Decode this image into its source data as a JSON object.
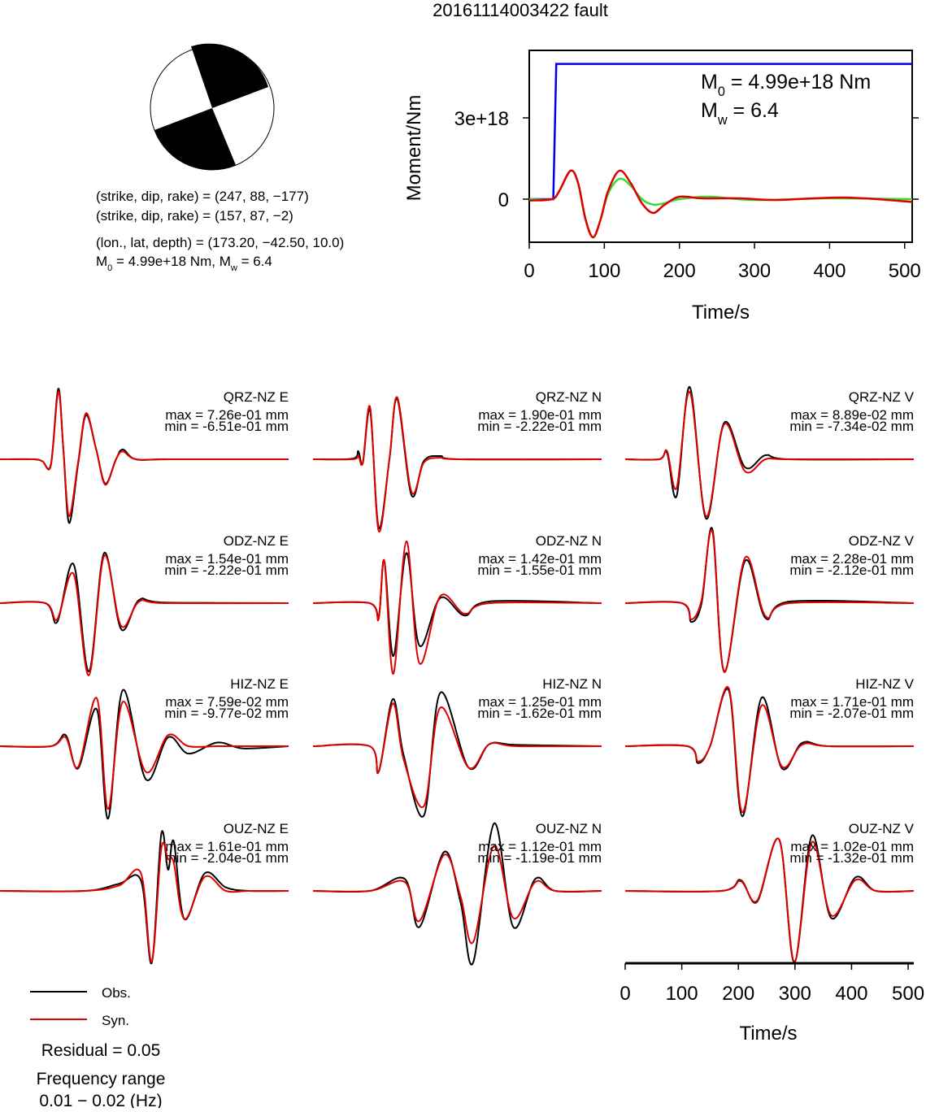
{
  "title": "20161114003422 fault",
  "mechanism": {
    "lines": [
      "(strike, dip, rake) = (247, 88, −177)",
      "(strike, dip, rake) = (157, 87, −2)",
      "(lon., lat, depth) = (173.20, −42.50, 10.0)"
    ],
    "moment_line": [
      "M",
      "0",
      " = 4.99e+18 Nm, M",
      "w",
      " = 6.4"
    ]
  },
  "chart_data": [
    {
      "type": "line",
      "ylabel": "Moment/Nm",
      "xlabel": "Time/s",
      "xlim": [
        0,
        510
      ],
      "xticks": [
        0,
        100,
        200,
        300,
        400,
        500
      ],
      "ylim": [
        -1.59e+18,
        5.49e+18
      ],
      "yticks": [
        0,
        {
          "value": 3e+18,
          "label": "3e+18"
        }
      ],
      "annotations": [
        [
          "M",
          "0",
          " = 4.99e+18 Nm"
        ],
        [
          "M",
          "w",
          " = 6.4"
        ]
      ],
      "series": [
        {
          "color": "#0000e0",
          "smooth": false,
          "x": [
            0,
            32,
            36,
            510
          ],
          "values": [
            0,
            0,
            4.99e+18,
            4.99e+18
          ]
        },
        {
          "color": "#33dd33",
          "smooth": true,
          "x": [
            0,
            30,
            40,
            55,
            65,
            75,
            85,
            95,
            105,
            120,
            135,
            150,
            165,
            180,
            200,
            240,
            300,
            400,
            510
          ],
          "values": [
            0,
            0,
            3e+17,
            1.05e+18,
            6e+17,
            -7.5e+17,
            -1.41e+18,
            -7.5e+17,
            2e+17,
            7.5e+17,
            5e+17,
            0,
            -2e+17,
            -1.5e+17,
            0,
            9e+16,
            -3e+16,
            3e+16,
            0
          ]
        },
        {
          "color": "#e00000",
          "smooth": true,
          "x": [
            0,
            30,
            40,
            55,
            65,
            75,
            85,
            95,
            105,
            120,
            135,
            150,
            165,
            180,
            200,
            230,
            280,
            330,
            420,
            510
          ],
          "values": [
            -5e+16,
            0,
            3e+17,
            1.05e+18,
            6e+17,
            -7.5e+17,
            -1.41e+18,
            -7.5e+17,
            3e+17,
            1.05e+18,
            6e+17,
            -1.5e+17,
            -5.1e+17,
            -2.1e+17,
            9e+16,
            3e+16,
            3e+16,
            -3e+16,
            6e+16,
            -1e+17
          ]
        }
      ]
    },
    {
      "type": "waveform",
      "xlabel": "Time/s",
      "xlim": [
        0,
        510
      ],
      "xticks": [
        0,
        100,
        200,
        300,
        400,
        500
      ],
      "legend": [
        {
          "name": "Obs.",
          "color": "#000000"
        },
        {
          "name": "Syn.",
          "color": "#e00000"
        }
      ],
      "notes": [
        "Residual = 0.05",
        "Frequency range",
        "0.01 − 0.02 (Hz)"
      ],
      "panels": [
        {
          "title": "QRZ-NZ E",
          "max": "max = 7.26e-01 mm",
          "min": "min = -6.51e-01 mm",
          "ylim": [
            -0.83,
            0.83
          ],
          "x": [
            0,
            60,
            75,
            90,
            103,
            112,
            122,
            138,
            152,
            170,
            186,
            205,
            217,
            240,
            300,
            510
          ],
          "obs": [
            0,
            0,
            -0.02,
            -0.05,
            0.72,
            0.1,
            -0.65,
            -0.05,
            0.45,
            0.1,
            -0.25,
            0,
            0.1,
            0,
            0,
            0
          ],
          "syn": [
            0,
            0,
            -0.02,
            -0.06,
            0.69,
            0.1,
            -0.58,
            -0.03,
            0.47,
            0.1,
            -0.26,
            0,
            0.08,
            0,
            0,
            0
          ]
        },
        {
          "title": "QRZ-NZ N",
          "max": "max = 1.90e-01 mm",
          "min": "min = -2.22e-01 mm",
          "ylim": [
            -0.25,
            0.25
          ],
          "x": [
            0,
            70,
            80,
            88,
            101,
            116,
            135,
            149,
            174,
            196,
            225,
            260,
            510
          ],
          "obs": [
            0,
            0.002,
            0.025,
            -0.012,
            0.15,
            -0.21,
            0,
            0.185,
            -0.11,
            -0.005,
            0.01,
            0,
            0
          ],
          "syn": [
            0,
            0,
            0.01,
            -0.01,
            0.16,
            -0.22,
            0,
            0.19,
            -0.1,
            -0.01,
            0.005,
            0,
            0
          ]
        },
        {
          "title": "QRZ-NZ V",
          "max": "max = 8.89e-02 mm",
          "min": "min = -7.34e-02 mm",
          "ylim": [
            -0.1,
            0.1
          ],
          "x": [
            0,
            60,
            74,
            91,
            114,
            143,
            175,
            212,
            248,
            290,
            510
          ],
          "obs": [
            0,
            0,
            0.008,
            -0.045,
            0.089,
            -0.073,
            0.045,
            -0.01,
            0.005,
            0,
            0
          ],
          "syn": [
            0,
            0,
            0.01,
            -0.035,
            0.083,
            -0.07,
            0.043,
            -0.015,
            0,
            0,
            0
          ]
        },
        {
          "title": "ODZ-NZ E",
          "max": "max = 1.54e-01 mm",
          "min": "min = -2.22e-01 mm",
          "ylim": [
            -0.25,
            0.25
          ],
          "x": [
            0,
            80,
            101,
            130,
            157,
            184,
            214,
            246,
            290,
            510
          ],
          "obs": [
            0,
            0,
            -0.058,
            0.12,
            -0.21,
            0.154,
            -0.08,
            0.01,
            0.002,
            0
          ],
          "syn": [
            0,
            0,
            -0.05,
            0.09,
            -0.222,
            0.145,
            -0.07,
            0.005,
            0,
            0
          ]
        },
        {
          "title": "ODZ-NZ N",
          "max": "max = 1.42e-01 mm",
          "min": "min = -1.55e-01 mm",
          "ylim": [
            -0.23,
            0.23
          ],
          "x": [
            0,
            100,
            116,
            126,
            142,
            165,
            188,
            225,
            268,
            312,
            510
          ],
          "obs": [
            0,
            0,
            -0.04,
            0.12,
            -0.15,
            0.142,
            -0.12,
            0.015,
            -0.035,
            0.005,
            0
          ],
          "syn": [
            0,
            0,
            -0.045,
            0.12,
            -0.2,
            0.175,
            -0.17,
            0.02,
            -0.03,
            0,
            0
          ]
        },
        {
          "title": "ODZ-NZ V",
          "max": "max = 2.28e-01 mm",
          "min": "min = -2.12e-01 mm",
          "ylim": [
            -0.25,
            0.25
          ],
          "x": [
            0,
            100,
            117,
            135,
            154,
            175,
            212,
            248,
            291,
            510
          ],
          "obs": [
            0,
            0,
            -0.058,
            0,
            0.228,
            -0.21,
            0.13,
            -0.046,
            0.005,
            0
          ],
          "syn": [
            0,
            0,
            -0.05,
            0.01,
            0.22,
            -0.212,
            0.14,
            -0.04,
            0,
            0
          ]
        },
        {
          "title": "HIZ-NZ E",
          "max": "max = 7.59e-02 mm",
          "min": "min = -9.77e-02 mm",
          "ylim": [
            -0.11,
            0.11
          ],
          "x": [
            0,
            90,
            116,
            138,
            171,
            191,
            217,
            258,
            297,
            333,
            384,
            430,
            510
          ],
          "obs": [
            0,
            0,
            0.015,
            -0.03,
            0.05,
            -0.098,
            0.076,
            -0.045,
            0.012,
            -0.01,
            0.005,
            -0.003,
            0
          ],
          "syn": [
            0,
            0,
            0.012,
            -0.028,
            0.065,
            -0.085,
            0.06,
            -0.035,
            0.015,
            0,
            0,
            0,
            0
          ]
        },
        {
          "title": "HIZ-NZ N",
          "max": "max = 1.25e-01 mm",
          "min": "min = -1.62e-01 mm",
          "ylim": [
            -0.19,
            0.19
          ],
          "x": [
            0,
            100,
            116,
            141,
            160,
            196,
            225,
            275,
            312,
            360,
            510
          ],
          "obs": [
            0,
            0,
            -0.06,
            0.11,
            -0.02,
            -0.162,
            0.125,
            -0.05,
            0.005,
            0.003,
            0
          ],
          "syn": [
            0,
            0,
            -0.06,
            0.1,
            -0.03,
            -0.14,
            0.09,
            -0.05,
            0.005,
            0,
            0
          ]
        },
        {
          "title": "HIZ-NZ V",
          "max": "max = 1.71e-01 mm",
          "min": "min = -2.07e-01 mm",
          "ylim": [
            -0.24,
            0.24
          ],
          "x": [
            0,
            110,
            129,
            150,
            183,
            207,
            241,
            277,
            313,
            360,
            510
          ],
          "obs": [
            0,
            0,
            -0.05,
            0,
            0.165,
            -0.207,
            0.143,
            -0.065,
            0.01,
            0,
            0
          ],
          "syn": [
            0,
            0,
            -0.045,
            0,
            0.171,
            -0.195,
            0.12,
            -0.06,
            0.005,
            0,
            0
          ]
        },
        {
          "title": "OUZ-NZ E",
          "max": "max = 1.61e-01 mm",
          "min": "min = -2.04e-01 mm",
          "ylim": [
            -0.23,
            0.23
          ],
          "x": [
            0,
            150,
            210,
            249,
            268,
            285,
            297,
            307,
            326,
            362,
            399,
            440,
            510
          ],
          "obs": [
            0,
            0,
            0.02,
            0.03,
            -0.204,
            0.161,
            0.06,
            0.14,
            -0.08,
            0.05,
            0.01,
            0,
            0
          ],
          "syn": [
            0,
            0,
            0.015,
            0.05,
            -0.2,
            0.12,
            0.09,
            0.08,
            -0.08,
            0.04,
            0,
            0,
            0
          ]
        },
        {
          "title": "OUZ-NZ N",
          "max": "max = 1.12e-01 mm",
          "min": "min = -1.19e-01 mm",
          "ylim": [
            -0.135,
            0.135
          ],
          "x": [
            0,
            100,
            162,
            188,
            232,
            261,
            283,
            320,
            354,
            393,
            428,
            510
          ],
          "obs": [
            0,
            0,
            0.02,
            -0.06,
            0.065,
            -0.02,
            -0.119,
            0.112,
            -0.06,
            0.02,
            0,
            0
          ],
          "syn": [
            0,
            0,
            0.015,
            -0.05,
            0.06,
            -0.01,
            -0.085,
            0.075,
            -0.045,
            0.015,
            0,
            0
          ]
        },
        {
          "title": "OUZ-NZ V",
          "max": "max = 1.02e-01 mm",
          "min": "min = -1.32e-01 mm",
          "ylim": [
            -0.15,
            0.15
          ],
          "x": [
            0,
            170,
            204,
            233,
            272,
            299,
            330,
            364,
            407,
            443,
            510
          ],
          "obs": [
            0,
            0,
            0.02,
            -0.02,
            0.095,
            -0.132,
            0.102,
            -0.05,
            0.025,
            0,
            0
          ],
          "syn": [
            0,
            0,
            0.018,
            -0.018,
            0.095,
            -0.13,
            0.09,
            -0.045,
            0.02,
            0,
            0
          ]
        }
      ]
    }
  ]
}
